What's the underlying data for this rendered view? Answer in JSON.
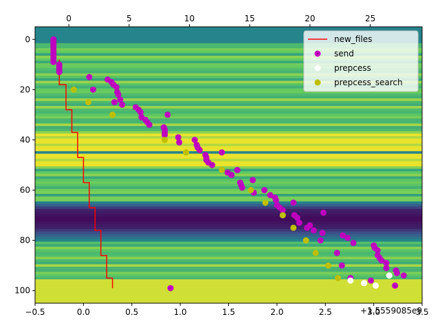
{
  "chart_data": {
    "type": "scatter",
    "title": "",
    "xlabel": "",
    "ylabel": "",
    "bottom_axis": {
      "xlim": [
        -0.5,
        3.5
      ],
      "ticks": [
        -0.5,
        0.0,
        0.5,
        1.0,
        1.5,
        2.0,
        2.5,
        3.0,
        3.5
      ],
      "tick_labels": [
        "−0.5",
        "0.0",
        "0.5",
        "1.0",
        "1.5",
        "2.0",
        "2.5",
        "3.0",
        "3.5"
      ],
      "offset_label": "+1.5559085e9"
    },
    "top_axis": {
      "xlim": [
        -2.8,
        29.3
      ],
      "ticks": [
        0,
        5,
        10,
        15,
        20,
        25
      ],
      "tick_labels": [
        "0",
        "5",
        "10",
        "15",
        "20",
        "25"
      ]
    },
    "y_axis": {
      "ylim": [
        105,
        -5
      ],
      "inverted": true,
      "ticks": [
        0,
        20,
        40,
        60,
        80,
        100
      ],
      "tick_labels": [
        "0",
        "20",
        "40",
        "60",
        "80",
        "100"
      ]
    },
    "background": {
      "type": "heatmap",
      "colormap": "viridis",
      "note_rows": 100
    },
    "legend": {
      "position": "top-right"
    },
    "series": [
      {
        "name": "new_files",
        "type": "line",
        "color": "#ff0000",
        "x": [
          -0.25,
          -0.25,
          -0.18,
          -0.18,
          -0.12,
          -0.12,
          -0.06,
          -0.06,
          0.0,
          0.0,
          0.06,
          0.06,
          0.12,
          0.12,
          0.18,
          0.18,
          0.24,
          0.24,
          0.3,
          0.3
        ],
        "y": [
          8,
          18,
          18,
          28,
          28,
          37,
          37,
          47,
          47,
          57,
          57,
          67,
          67,
          76,
          76,
          86,
          86,
          95,
          95,
          99
        ]
      },
      {
        "name": "send",
        "type": "scatter",
        "color": "#bf00bf",
        "points": [
          [
            -0.31,
            0
          ],
          [
            -0.31,
            1
          ],
          [
            -0.31,
            2
          ],
          [
            -0.31,
            3
          ],
          [
            -0.31,
            4
          ],
          [
            -0.31,
            5
          ],
          [
            -0.31,
            6
          ],
          [
            -0.31,
            7
          ],
          [
            -0.31,
            8
          ],
          [
            -0.31,
            9
          ],
          [
            -0.25,
            10
          ],
          [
            -0.25,
            11
          ],
          [
            -0.25,
            12
          ],
          [
            -0.25,
            13
          ],
          [
            0.06,
            15
          ],
          [
            0.1,
            20
          ],
          [
            0.25,
            16
          ],
          [
            0.29,
            17
          ],
          [
            0.31,
            18
          ],
          [
            0.34,
            19
          ],
          [
            0.35,
            21
          ],
          [
            0.36,
            22
          ],
          [
            0.38,
            24
          ],
          [
            0.32,
            25
          ],
          [
            0.4,
            26
          ],
          [
            0.54,
            27
          ],
          [
            0.57,
            28
          ],
          [
            0.59,
            29
          ],
          [
            0.6,
            31
          ],
          [
            0.64,
            32
          ],
          [
            0.66,
            33
          ],
          [
            0.68,
            34
          ],
          [
            0.87,
            30
          ],
          [
            0.83,
            35
          ],
          [
            0.84,
            36
          ],
          [
            0.84,
            37
          ],
          [
            0.84,
            38
          ],
          [
            0.98,
            39
          ],
          [
            0.99,
            41
          ],
          [
            1.15,
            40
          ],
          [
            1.17,
            42
          ],
          [
            1.18,
            43
          ],
          [
            1.2,
            44
          ],
          [
            1.26,
            46
          ],
          [
            1.27,
            47
          ],
          [
            1.27,
            48
          ],
          [
            1.29,
            49
          ],
          [
            1.33,
            50
          ],
          [
            1.43,
            45
          ],
          [
            1.49,
            53
          ],
          [
            1.53,
            54
          ],
          [
            1.59,
            52
          ],
          [
            1.62,
            57
          ],
          [
            1.63,
            58
          ],
          [
            1.64,
            59
          ],
          [
            1.75,
            56
          ],
          [
            1.76,
            61
          ],
          [
            1.87,
            60
          ],
          [
            1.93,
            62
          ],
          [
            1.98,
            63
          ],
          [
            1.99,
            64
          ],
          [
            2.0,
            66
          ],
          [
            2.03,
            67
          ],
          [
            2.06,
            68
          ],
          [
            2.17,
            65
          ],
          [
            2.18,
            70
          ],
          [
            2.21,
            71
          ],
          [
            2.23,
            73
          ],
          [
            2.31,
            75
          ],
          [
            2.34,
            74
          ],
          [
            2.38,
            76
          ],
          [
            2.45,
            80
          ],
          [
            2.47,
            77
          ],
          [
            2.48,
            69
          ],
          [
            2.62,
            85
          ],
          [
            2.67,
            90
          ],
          [
            2.68,
            78
          ],
          [
            2.73,
            79
          ],
          [
            2.79,
            81
          ],
          [
            2.76,
            95
          ],
          [
            2.97,
            96
          ],
          [
            3.0,
            82
          ],
          [
            3.01,
            83
          ],
          [
            3.04,
            84
          ],
          [
            3.04,
            86
          ],
          [
            3.06,
            87
          ],
          [
            3.08,
            88
          ],
          [
            3.13,
            89
          ],
          [
            3.13,
            91
          ],
          [
            3.23,
            92
          ],
          [
            3.24,
            93
          ],
          [
            3.31,
            94
          ],
          [
            3.22,
            98
          ],
          [
            0.9,
            99
          ]
        ]
      },
      {
        "name": "prepcess",
        "type": "scatter",
        "color": "#ffffff",
        "points": [
          [
            2.76,
            96
          ],
          [
            2.9,
            97
          ],
          [
            3.02,
            98
          ],
          [
            3.16,
            94
          ]
        ]
      },
      {
        "name": "prepcess_search",
        "type": "scatter",
        "color": "#bfbf00",
        "points": [
          [
            -0.1,
            20
          ],
          [
            0.05,
            25
          ],
          [
            0.3,
            30
          ],
          [
            0.84,
            40
          ],
          [
            1.06,
            45
          ],
          [
            1.43,
            52
          ],
          [
            1.73,
            60
          ],
          [
            1.88,
            65
          ],
          [
            2.06,
            70
          ],
          [
            2.17,
            75
          ],
          [
            2.3,
            80
          ],
          [
            2.4,
            85
          ],
          [
            2.53,
            90
          ],
          [
            2.63,
            95
          ]
        ]
      }
    ]
  }
}
